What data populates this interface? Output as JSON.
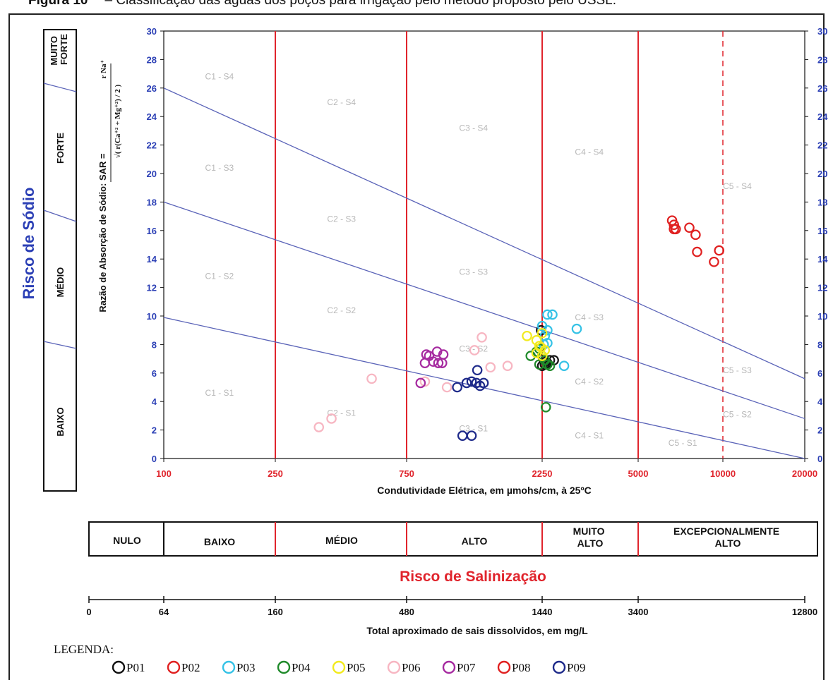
{
  "caption": {
    "figure_label": "Figura 10",
    "text": "– Classificação das águas dos poços para irrigação pelo método proposto pelo USSL."
  },
  "sodium_panel": {
    "title": "Risco de Sódio",
    "levels": [
      "MUITO FORTE",
      "FORTE",
      "MÉDIO",
      "BAIXO"
    ]
  },
  "sar_formula": {
    "label": "Razão de Absorção de Sódio:  SAR  =",
    "numerator": "r Na⁺",
    "denominator": "√( r(Ca⁺² + Mg⁺²) / 2 )"
  },
  "salinity_panel": {
    "title": "Risco de Salinização",
    "levels": [
      "NULO",
      "BAIXO",
      "MÉDIO",
      "ALTO",
      "MUITO ALTO",
      "EXCEPCIONALMENTE ALTO"
    ]
  },
  "tds_axis": {
    "title": "Total aproximado de sais dissolvidos, em mg/L",
    "ticks": [
      "0",
      "64",
      "160",
      "480",
      "1440",
      "3400",
      "12800"
    ]
  },
  "legend": {
    "title": "LEGENDA:"
  },
  "colors": {
    "axis_text": "#2b3fb5",
    "class_lines": "#5a63b8",
    "zone_lines": "#e0242c",
    "zone_text": "#b8b8b8",
    "salinity_title": "#e0242c",
    "sodium_title": "#2b3fb5"
  },
  "chart_data": {
    "type": "scatter",
    "xlabel": "Condutividade Elétrica, em µmohs/cm, à 25ºC",
    "ylabel": "",
    "x_scale": "log",
    "xlim": [
      100,
      20000
    ],
    "ylim": [
      0,
      30
    ],
    "x_ticks": [
      100,
      250,
      750,
      2250,
      5000,
      10000,
      20000
    ],
    "y_ticks": [
      0,
      2,
      4,
      6,
      8,
      10,
      12,
      14,
      16,
      18,
      20,
      22,
      24,
      26,
      28,
      30
    ],
    "vertical_boundaries": [
      250,
      750,
      2250,
      5000
    ],
    "dashed_boundary": 10000,
    "sar_lines": [
      {
        "from": [
          100,
          26
        ],
        "to": [
          20000,
          5.6
        ]
      },
      {
        "from": [
          100,
          18
        ],
        "to": [
          20000,
          2.8
        ]
      },
      {
        "from": [
          100,
          9.9
        ],
        "to": [
          20000,
          0
        ]
      }
    ],
    "zone_labels": [
      {
        "text": "C1 - S4",
        "x": 158,
        "y": 26.6
      },
      {
        "text": "C1 - S3",
        "x": 158,
        "y": 20.2
      },
      {
        "text": "C1 - S2",
        "x": 158,
        "y": 12.6
      },
      {
        "text": "C1 - S1",
        "x": 158,
        "y": 4.4
      },
      {
        "text": "C2 - S4",
        "x": 435,
        "y": 24.8
      },
      {
        "text": "C2 - S3",
        "x": 435,
        "y": 16.6
      },
      {
        "text": "C2 - S2",
        "x": 435,
        "y": 10.2
      },
      {
        "text": "C2 - S1",
        "x": 435,
        "y": 3.0
      },
      {
        "text": "C3 - S4",
        "x": 1290,
        "y": 23.0
      },
      {
        "text": "C3 - S3",
        "x": 1290,
        "y": 12.9
      },
      {
        "text": "C3 - S2",
        "x": 1290,
        "y": 7.5
      },
      {
        "text": "C3 - S1",
        "x": 1290,
        "y": 1.9
      },
      {
        "text": "C4 - S4",
        "x": 3330,
        "y": 21.3
      },
      {
        "text": "C4 - S3",
        "x": 3330,
        "y": 9.7
      },
      {
        "text": "C4 - S2",
        "x": 3330,
        "y": 5.2
      },
      {
        "text": "C4 - S1",
        "x": 3330,
        "y": 1.4
      },
      {
        "text": "C5 - S4",
        "x": 11300,
        "y": 18.9
      },
      {
        "text": "C5 - S3",
        "x": 11300,
        "y": 6.0
      },
      {
        "text": "C5 - S2",
        "x": 11300,
        "y": 2.9
      },
      {
        "text": "C5 - S1",
        "x": 7200,
        "y": 0.9
      }
    ],
    "series": [
      {
        "name": "P01",
        "color": "#111111",
        "x": [
          2230,
          2270,
          2320,
          2400,
          2480,
          2250,
          2300,
          2350
        ],
        "y": [
          9.0,
          7.0,
          6.8,
          6.9,
          6.9,
          6.5,
          6.6,
          6.7
        ]
      },
      {
        "name": "P02",
        "color": "#e02020",
        "x": [],
        "y": []
      },
      {
        "name": "P03",
        "color": "#35c2e6",
        "x": [
          2250,
          2350,
          2450,
          2350,
          2300,
          2280,
          3000,
          2700,
          2350
        ],
        "y": [
          9.3,
          10.1,
          10.1,
          9.0,
          8.6,
          8.0,
          9.1,
          6.5,
          8.1
        ]
      },
      {
        "name": "P04",
        "color": "#1f8a2a",
        "x": [
          2050,
          2150,
          2200,
          2250,
          2300,
          2200,
          2350,
          2400,
          2320
        ],
        "y": [
          7.2,
          7.5,
          7.7,
          7.2,
          6.9,
          6.6,
          6.6,
          6.5,
          3.6
        ]
      },
      {
        "name": "P05",
        "color": "#f2ea1e",
        "x": [
          1990,
          2150,
          2200,
          2250,
          2300,
          2150,
          2250,
          2230
        ],
        "y": [
          8.6,
          8.3,
          7.9,
          8.8,
          7.6,
          7.4,
          7.2,
          7.8
        ]
      },
      {
        "name": "P06",
        "color": "#f7b6c2",
        "x": [
          360,
          400,
          560,
          870,
          1300,
          1380,
          1480,
          1700,
          1040
        ],
        "y": [
          2.2,
          2.8,
          5.6,
          5.4,
          7.6,
          8.5,
          6.4,
          6.5,
          5.0
        ]
      },
      {
        "name": "P07",
        "color": "#a62aa0",
        "x": [
          840,
          870,
          900,
          930,
          960,
          1010,
          880,
          970,
          1000
        ],
        "y": [
          5.3,
          6.7,
          7.2,
          6.8,
          7.5,
          7.3,
          7.3,
          6.7,
          6.7
        ]
      },
      {
        "name": "P08",
        "color": "#e02020",
        "x": [
          6600,
          6700,
          6800,
          6700,
          7600,
          8000,
          8100,
          9300,
          9700
        ],
        "y": [
          16.7,
          16.4,
          16.1,
          16.1,
          16.2,
          15.7,
          14.5,
          13.8,
          14.6
        ]
      },
      {
        "name": "P09",
        "color": "#1e2a8a",
        "x": [
          1130,
          1220,
          1270,
          1320,
          1400,
          1330,
          1180,
          1270,
          1360
        ],
        "y": [
          5.0,
          5.3,
          5.4,
          5.3,
          5.3,
          6.2,
          1.6,
          1.6,
          5.1
        ]
      }
    ]
  }
}
